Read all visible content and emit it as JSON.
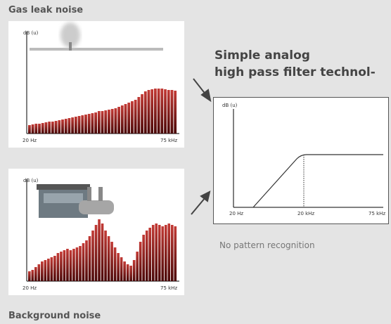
{
  "gas_panel": {
    "title": "Gas leak noise",
    "y_label": "dB (u)",
    "x_start": "20 Hz",
    "x_end": "75 kHz",
    "spectrum": [
      12,
      13,
      14,
      14,
      15,
      16,
      17,
      17,
      18,
      19,
      20,
      21,
      22,
      23,
      24,
      25,
      26,
      27,
      28,
      29,
      30,
      32,
      32,
      33,
      34,
      35,
      36,
      38,
      40,
      42,
      44,
      46,
      48,
      52,
      56,
      60,
      62,
      63,
      64,
      64,
      64,
      63,
      62,
      62,
      61
    ]
  },
  "background_panel": {
    "title": "Background noise",
    "y_label": "dB (u)",
    "x_start": "20 Hz",
    "x_end": "75 kHz",
    "spectrum": [
      14,
      16,
      20,
      24,
      28,
      30,
      32,
      34,
      36,
      40,
      42,
      44,
      46,
      44,
      46,
      48,
      50,
      54,
      58,
      64,
      72,
      80,
      88,
      82,
      72,
      64,
      56,
      48,
      40,
      34,
      28,
      24,
      22,
      30,
      42,
      56,
      66,
      72,
      76,
      80,
      82,
      80,
      78,
      80,
      82,
      80,
      78
    ]
  },
  "filter_panel": {
    "title_line1": "Simple analog",
    "title_line2": "high pass filter technol-",
    "y_label": "dB (u)",
    "x_start": "20 Hz",
    "x_mid": "20 kHz",
    "x_end": "75 kHz",
    "caption": "No pattern recognition"
  }
}
